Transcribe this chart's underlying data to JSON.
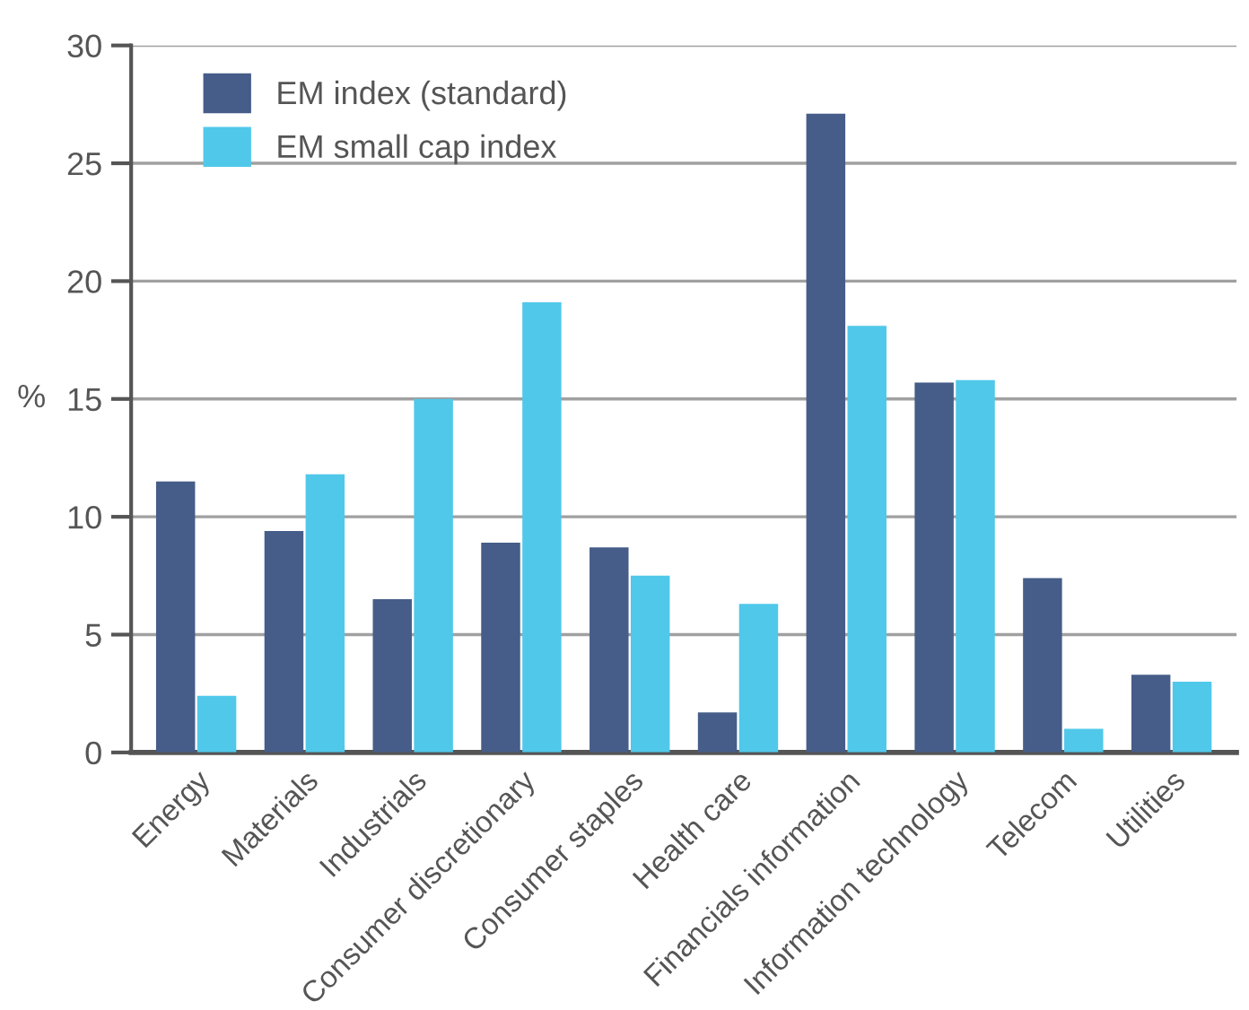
{
  "chart_data": {
    "type": "bar",
    "ylabel": "%",
    "categories": [
      "Energy",
      "Materials",
      "Industrials",
      "Consumer discretionary",
      "Consumer staples",
      "Health care",
      "Financials information",
      "Information technology",
      "Telecom",
      "Utilities"
    ],
    "series": [
      {
        "name": "EM index (standard)",
        "color": "#455d88",
        "values": [
          11.5,
          9.4,
          6.5,
          8.9,
          8.7,
          1.7,
          27.1,
          15.7,
          7.4,
          3.3
        ]
      },
      {
        "name": "EM small cap index",
        "color": "#50c8ea",
        "values": [
          2.4,
          11.8,
          15.0,
          19.1,
          7.5,
          6.3,
          18.1,
          15.8,
          1.0,
          3.0
        ]
      }
    ],
    "ylim": [
      0,
      30
    ],
    "yticks": [
      0,
      5,
      10,
      15,
      20,
      25,
      30
    ],
    "grid": "y",
    "legend": "top left"
  }
}
